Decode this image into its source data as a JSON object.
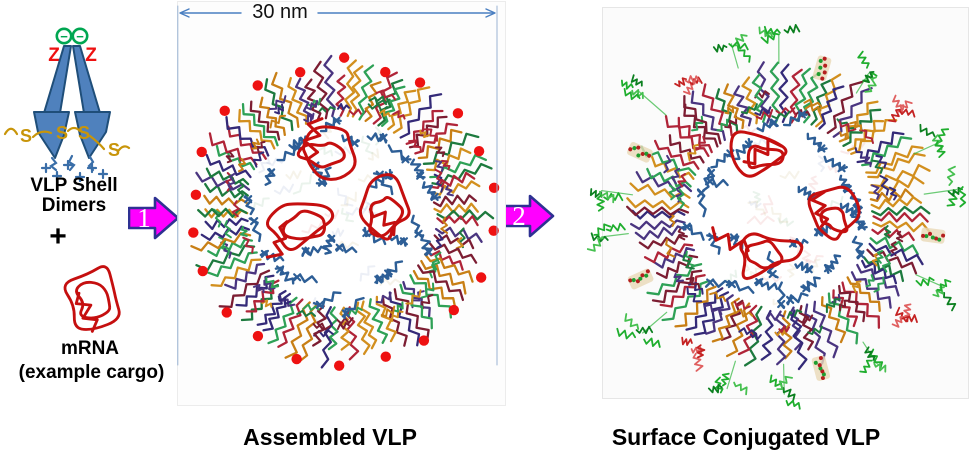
{
  "figure": {
    "left": {
      "shell_label_line1": "VLP Shell",
      "shell_label_line2": "Dimers",
      "plus": "+",
      "mrna_label": "mRNA",
      "mrna_note": "(example cargo)",
      "z_symbol": "Z",
      "s_symbol": "S",
      "minus_symbol": "−"
    },
    "steps": {
      "one": "1",
      "two": "2"
    },
    "assembled": {
      "dimension": "30 nm",
      "caption": "Assembled VLP"
    },
    "conjugated": {
      "caption": "Surface Conjugated VLP"
    }
  },
  "colors": {
    "dimer_fill": "#4f81bd",
    "dimer_stroke": "#1f4e79",
    "charge_green": "#00a651",
    "z_red": "#ee1111",
    "s_gold": "#c8950a",
    "plus_blue": "#3a6ea8",
    "arrow_fill": "#ff00ff",
    "arrow_stroke": "#2e3192",
    "arrow_text": "#ffffff",
    "dimension_blue": "#4a7fc1",
    "extension_blue": "#9ab4d4",
    "vlp_blue": "#2d5e96",
    "mrna_red": "#c50f0f",
    "dot_red": "#ee1111",
    "panel_border": "#e6e6e6",
    "panel_bg": "#fbfbfb",
    "caption_color": "#000000"
  },
  "graphics": {
    "spike_palette": [
      "#342a78",
      "#7c1d32",
      "#b02438",
      "#1d7a3e",
      "#2ea156",
      "#d28f1e",
      "#c87f15",
      "#4a3580"
    ],
    "faint_palette": [
      "#e8a0a0",
      "#9fc7a7",
      "#a8b8d8",
      "#d8c8a0"
    ],
    "green_palette": [
      "#1fae2e",
      "#0c8020",
      "#46c050"
    ],
    "red_palette": [
      "#c42222",
      "#e06060"
    ],
    "assembled_vlp": {
      "seed": 7,
      "spikes": 22,
      "core_r": 100,
      "tip_r": 150,
      "tips": [
        "dot"
      ],
      "mrna": [
        [
          -16,
          -57,
          42,
          30,
          0.3
        ],
        [
          -38,
          13,
          40,
          29,
          1.2
        ],
        [
          43,
          0,
          34,
          38,
          2.2
        ]
      ]
    },
    "conjugated_vlp": {
      "seed": 13,
      "spikes": 22,
      "core_r": 100,
      "tip_r": 148,
      "tips": [
        "green",
        "mol",
        "green",
        "red",
        "green",
        "green",
        "mol",
        "green",
        "red",
        "green",
        "mol",
        "green",
        "green",
        "red",
        "green",
        "mol",
        "green",
        "green",
        "mol",
        "green",
        "red",
        "green"
      ],
      "mrna": [
        [
          -20,
          -60,
          40,
          30,
          0.5
        ],
        [
          -15,
          40,
          42,
          30,
          1.5
        ],
        [
          55,
          5,
          34,
          36,
          2.4
        ]
      ]
    },
    "cargo_blob": {
      "seed": 5
    }
  }
}
